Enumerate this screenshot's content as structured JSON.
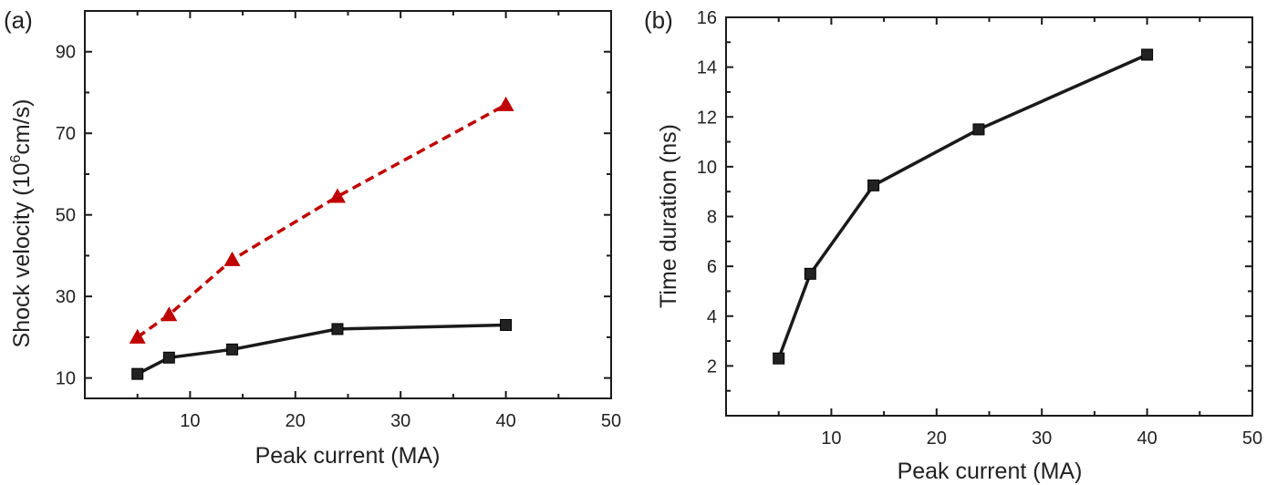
{
  "chart_data": [
    {
      "type": "line",
      "panel_label": "(a)",
      "xlabel": "Peak current (MA)",
      "ylabel_prefix": "Shock velocity (10",
      "ylabel_sup": "6",
      "ylabel_suffix": "cm/s)",
      "xlim": [
        0,
        50
      ],
      "ylim": [
        5,
        100
      ],
      "xticks": [
        10,
        20,
        30,
        40,
        50
      ],
      "yticks": [
        10,
        30,
        50,
        70,
        90
      ],
      "grid": false,
      "series": [
        {
          "x": [
            5,
            8,
            14,
            24,
            40
          ],
          "values": [
            20,
            25.5,
            39,
            54.5,
            77
          ],
          "color": "#c00000",
          "dash": "dashed",
          "marker": "triangle"
        },
        {
          "x": [
            5,
            8,
            14,
            24,
            40
          ],
          "values": [
            11,
            15,
            17,
            22,
            23
          ],
          "color": "#1a1a1a",
          "dash": "solid",
          "marker": "square"
        }
      ]
    },
    {
      "type": "line",
      "panel_label": "(b)",
      "xlabel": "Peak current (MA)",
      "ylabel": "Time duration (ns)",
      "xlim": [
        0,
        50
      ],
      "ylim": [
        0,
        16
      ],
      "xticks": [
        10,
        20,
        30,
        40,
        50
      ],
      "yticks": [
        2,
        4,
        6,
        8,
        10,
        12,
        14,
        16
      ],
      "grid": false,
      "series": [
        {
          "x": [
            5,
            8,
            14,
            24,
            40
          ],
          "values": [
            2.3,
            5.7,
            9.25,
            11.5,
            14.5
          ],
          "color": "#1a1a1a",
          "dash": "solid",
          "marker": "square"
        }
      ]
    }
  ]
}
